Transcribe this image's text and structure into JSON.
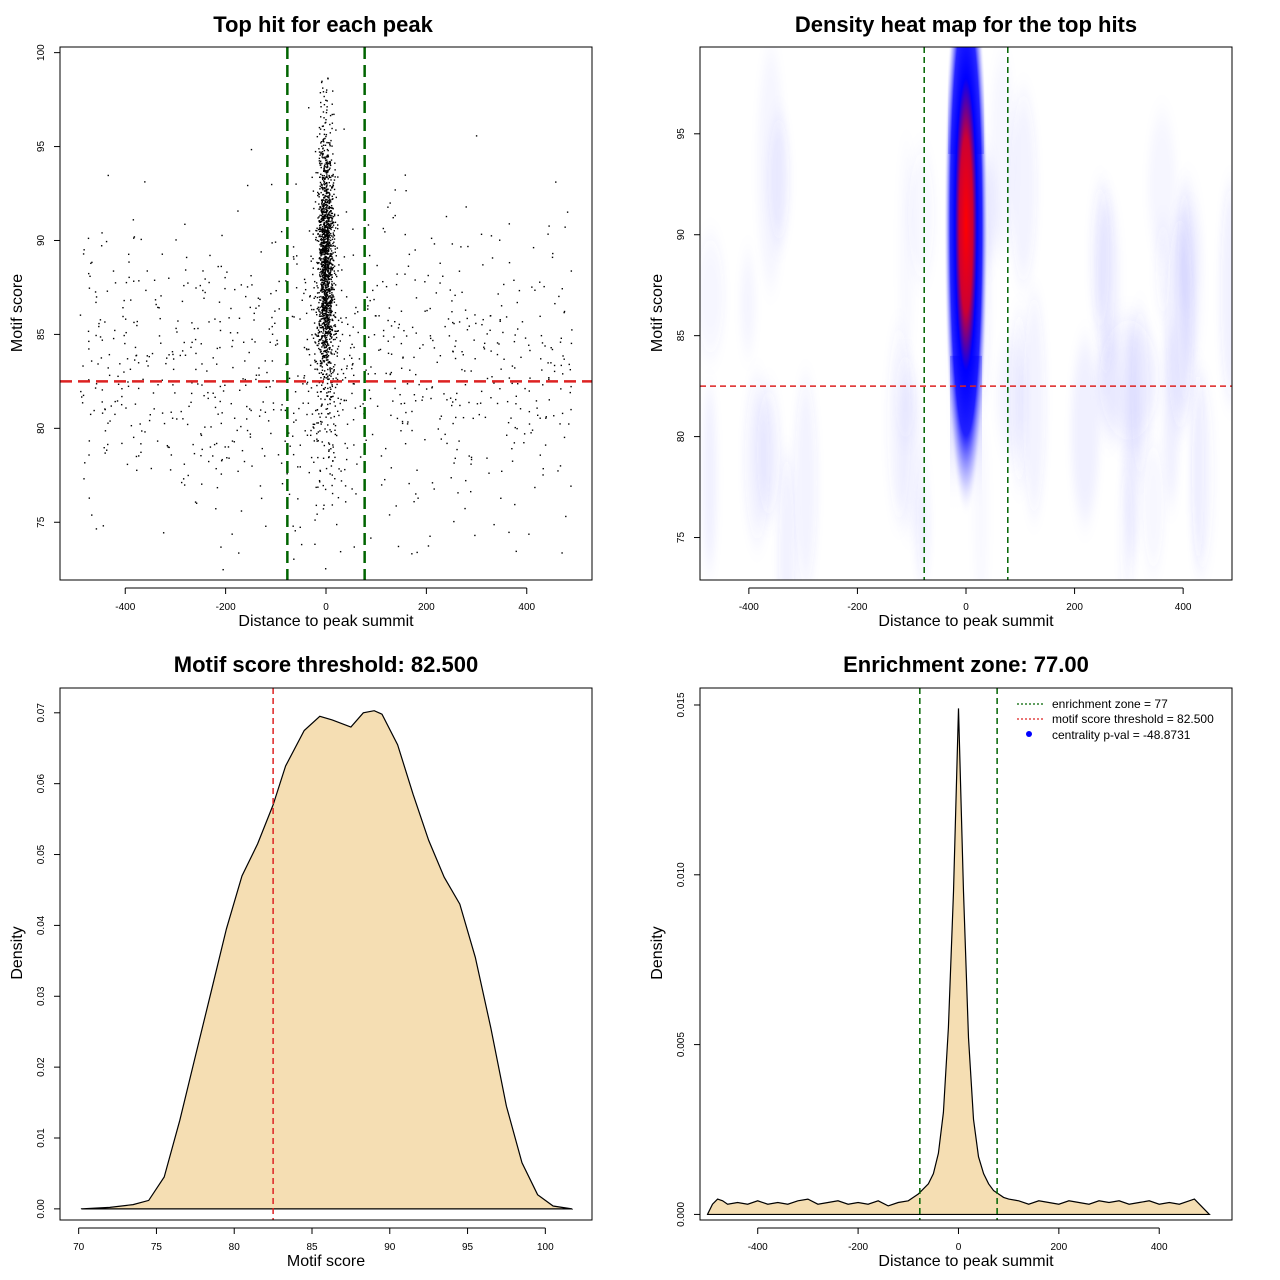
{
  "chart_data": [
    {
      "type": "scatter",
      "title": "Top hit for each peak",
      "xlabel": "Distance to peak summit",
      "ylabel": "Motif score",
      "xlim": [
        -530,
        530
      ],
      "ylim": [
        71.5,
        100.3
      ],
      "xticks": [
        "-400",
        "-200",
        "0",
        "200",
        "400"
      ],
      "xtick_values": [
        -400,
        -200,
        0,
        200,
        400
      ],
      "yticks": [
        "75",
        "80",
        "85",
        "90",
        "95",
        "100"
      ],
      "ytick_values": [
        75,
        80,
        85,
        90,
        95,
        100
      ],
      "score_threshold": 82.5,
      "enrichment_zone": [
        -77,
        77
      ],
      "colors": {
        "points": "#000000",
        "threshold": "#dd2222",
        "zone": "#006400"
      }
    },
    {
      "type": "heatmap",
      "title": "Density heat map for the top hits",
      "xlabel": "Distance to peak summit",
      "ylabel": "Motif score",
      "xlim": [
        -490,
        490
      ],
      "ylim": [
        72.5,
        99.3
      ],
      "xticks": [
        "-400",
        "-200",
        "0",
        "200",
        "400"
      ],
      "xtick_values": [
        -400,
        -200,
        0,
        200,
        400
      ],
      "yticks": [
        "75",
        "80",
        "85",
        "90",
        "95"
      ],
      "ytick_values": [
        75,
        80,
        85,
        90,
        95
      ],
      "peak_center": [
        0,
        90.5
      ],
      "score_threshold": 82.5,
      "enrichment_zone": [
        -77,
        77
      ],
      "colors": {
        "low": "#ffffff",
        "mid": "#0000ff",
        "high": "#ff0000",
        "threshold": "#dd2222",
        "zone": "#006400"
      }
    },
    {
      "type": "area",
      "title": "Motif score threshold: 82.500",
      "xlabel": "Motif score",
      "ylabel": "Density",
      "xlim": [
        68.8,
        103
      ],
      "ylim": [
        -0.0027,
        0.0735
      ],
      "xticks": [
        "70",
        "75",
        "80",
        "85",
        "90",
        "95",
        "100"
      ],
      "xtick_values": [
        70,
        75,
        80,
        85,
        90,
        95,
        100
      ],
      "yticks": [
        "0.00",
        "0.01",
        "0.02",
        "0.03",
        "0.04",
        "0.05",
        "0.06",
        "0.07"
      ],
      "ytick_values": [
        0,
        0.01,
        0.02,
        0.03,
        0.04,
        0.05,
        0.06,
        0.07
      ],
      "x": [
        70.2,
        72,
        73.5,
        74.5,
        75.5,
        76.5,
        77.5,
        78.5,
        79.5,
        80.5,
        81.5,
        82.5,
        83.3,
        84.5,
        85.5,
        86.3,
        87.5,
        88.3,
        89,
        89.5,
        90.5,
        91.5,
        92.5,
        93.5,
        94.5,
        95.5,
        96.5,
        97.5,
        98.5,
        99.5,
        100.5,
        101.7
      ],
      "values": [
        0.0,
        0.0002,
        0.0006,
        0.0012,
        0.0045,
        0.0125,
        0.0215,
        0.0305,
        0.0395,
        0.047,
        0.0515,
        0.057,
        0.0625,
        0.0675,
        0.0695,
        0.069,
        0.068,
        0.07,
        0.0703,
        0.0698,
        0.0655,
        0.0585,
        0.052,
        0.0468,
        0.043,
        0.0355,
        0.0255,
        0.0145,
        0.0065,
        0.002,
        0.0004,
        0.0
      ],
      "score_threshold": 82.5,
      "colors": {
        "fill": "#f5deb3",
        "line": "#000000",
        "threshold": "#dd2222"
      }
    },
    {
      "type": "area",
      "title": "Enrichment zone: 77.00",
      "xlabel": "Distance to peak summit",
      "ylabel": "Density",
      "xlim": [
        -515,
        545
      ],
      "ylim": [
        -0.0004,
        0.0155
      ],
      "xticks": [
        "-400",
        "-200",
        "0",
        "200",
        "400"
      ],
      "xtick_values": [
        -400,
        -200,
        0,
        200,
        400
      ],
      "yticks": [
        "0.000",
        "0.005",
        "0.010",
        "0.015"
      ],
      "ytick_values": [
        0,
        0.005,
        0.01,
        0.015
      ],
      "x": [
        -500,
        -490,
        -480,
        -470,
        -460,
        -440,
        -420,
        -400,
        -380,
        -360,
        -340,
        -320,
        -300,
        -280,
        -260,
        -240,
        -220,
        -200,
        -180,
        -160,
        -140,
        -120,
        -100,
        -90,
        -80,
        -70,
        -60,
        -50,
        -40,
        -30,
        -20,
        -10,
        0,
        10,
        20,
        30,
        40,
        50,
        60,
        70,
        80,
        90,
        100,
        120,
        140,
        160,
        180,
        200,
        220,
        240,
        260,
        280,
        300,
        320,
        340,
        360,
        380,
        400,
        420,
        440,
        460,
        470,
        480,
        490,
        500
      ],
      "values": [
        0,
        0.0003,
        0.00045,
        0.0004,
        0.0003,
        0.00035,
        0.0003,
        0.0004,
        0.0003,
        0.00035,
        0.0003,
        0.0004,
        0.00045,
        0.0003,
        0.00035,
        0.0004,
        0.0003,
        0.00035,
        0.0003,
        0.0004,
        0.00025,
        0.00035,
        0.0004,
        0.0005,
        0.0006,
        0.00075,
        0.0009,
        0.0012,
        0.0018,
        0.003,
        0.0055,
        0.0095,
        0.0149,
        0.0095,
        0.0052,
        0.0028,
        0.0017,
        0.0012,
        0.0009,
        0.0007,
        0.0006,
        0.0005,
        0.00045,
        0.0004,
        0.0003,
        0.0004,
        0.00035,
        0.0003,
        0.0004,
        0.00035,
        0.0003,
        0.0004,
        0.00035,
        0.0004,
        0.0003,
        0.00035,
        0.0004,
        0.0003,
        0.00035,
        0.0003,
        0.0004,
        0.00045,
        0.0003,
        0.00015,
        0
      ],
      "enrichment_zone": [
        -77,
        77
      ],
      "colors": {
        "fill": "#f5deb3",
        "line": "#000000",
        "zone": "#006400",
        "threshold": "#dd2222",
        "pval": "#0000ff"
      },
      "legend": {
        "position": "top-right",
        "zone_label": "enrichment zone = 77",
        "threshold_label": "motif score threshold = 82.500",
        "pval_label": "centrality p-val = -48.8731"
      }
    }
  ]
}
